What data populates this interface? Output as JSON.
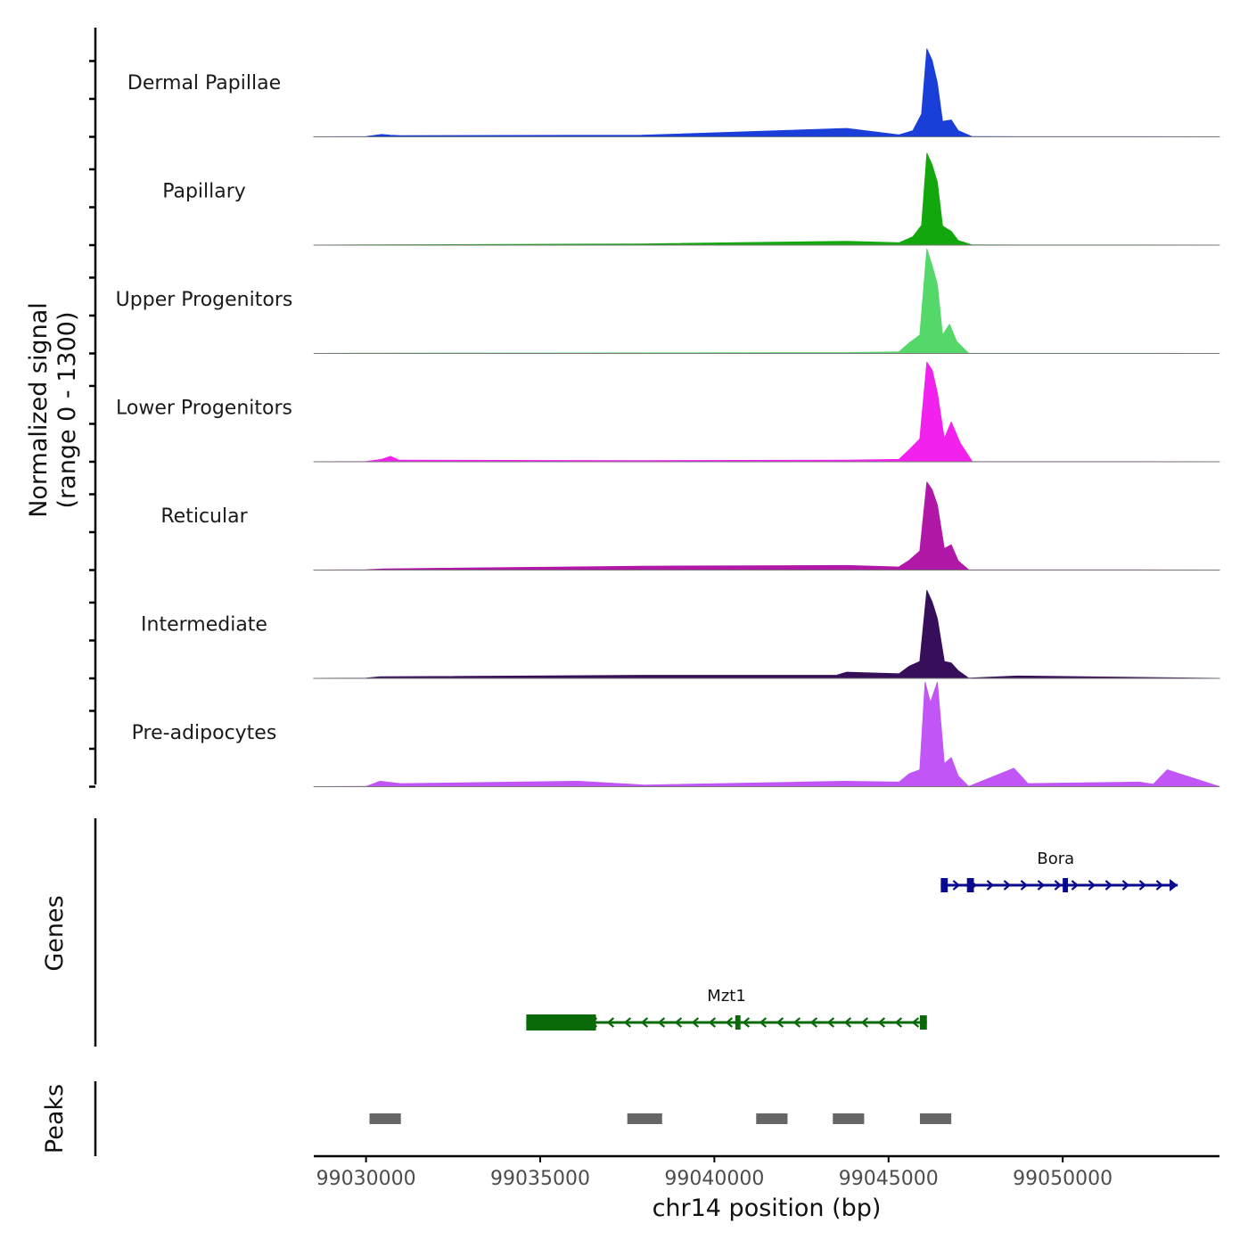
{
  "chart_data": {
    "type": "area",
    "title": "",
    "region": {
      "chrom": "chr14",
      "start": 99028500,
      "end": 99054500
    },
    "coverage": {
      "ylabel_line1": "Normalized signal",
      "ylabel_line2": "(range 0 - 1300)",
      "ylim": [
        0,
        1300
      ],
      "tracks": [
        {
          "name": "Dermal Papillae",
          "color": "#1a3fd9",
          "points": [
            [
              99030000,
              2
            ],
            [
              99030450,
              30
            ],
            [
              99030700,
              20
            ],
            [
              99031000,
              15
            ],
            [
              99037900,
              20
            ],
            [
              99043800,
              110
            ],
            [
              99045300,
              25
            ],
            [
              99045700,
              80
            ],
            [
              99045950,
              300
            ],
            [
              99046100,
              1150
            ],
            [
              99046250,
              1000
            ],
            [
              99046400,
              700
            ],
            [
              99046550,
              200
            ],
            [
              99046800,
              220
            ],
            [
              99047000,
              80
            ],
            [
              99047400,
              2
            ]
          ]
        },
        {
          "name": "Papillary",
          "color": "#12a80d",
          "points": [
            [
              99030000,
              2
            ],
            [
              99037900,
              15
            ],
            [
              99043800,
              50
            ],
            [
              99045300,
              30
            ],
            [
              99045700,
              110
            ],
            [
              99045950,
              260
            ],
            [
              99046100,
              1200
            ],
            [
              99046250,
              1050
            ],
            [
              99046400,
              820
            ],
            [
              99046550,
              250
            ],
            [
              99046800,
              180
            ],
            [
              99047000,
              60
            ],
            [
              99047400,
              2
            ]
          ]
        },
        {
          "name": "Upper Progenitors",
          "color": "#55d86a",
          "points": [
            [
              99030000,
              2
            ],
            [
              99043800,
              10
            ],
            [
              99045300,
              20
            ],
            [
              99045600,
              140
            ],
            [
              99045900,
              240
            ],
            [
              99046100,
              1400
            ],
            [
              99046250,
              1150
            ],
            [
              99046400,
              900
            ],
            [
              99046550,
              240
            ],
            [
              99046750,
              380
            ],
            [
              99046950,
              160
            ],
            [
              99047300,
              2
            ]
          ]
        },
        {
          "name": "Lower Progenitors",
          "color": "#f221ee",
          "points": [
            [
              99030000,
              2
            ],
            [
              99030450,
              30
            ],
            [
              99030700,
              70
            ],
            [
              99030950,
              20
            ],
            [
              99037900,
              15
            ],
            [
              99043800,
              20
            ],
            [
              99045300,
              30
            ],
            [
              99045600,
              160
            ],
            [
              99045900,
              300
            ],
            [
              99046100,
              1300
            ],
            [
              99046250,
              1200
            ],
            [
              99046400,
              900
            ],
            [
              99046600,
              300
            ],
            [
              99046800,
              520
            ],
            [
              99047050,
              250
            ],
            [
              99047400,
              2
            ]
          ]
        },
        {
          "name": "Reticular",
          "color": "#b118a8",
          "points": [
            [
              99030000,
              2
            ],
            [
              99030500,
              15
            ],
            [
              99037900,
              50
            ],
            [
              99043800,
              60
            ],
            [
              99045300,
              40
            ],
            [
              99045600,
              130
            ],
            [
              99045900,
              250
            ],
            [
              99046100,
              1150
            ],
            [
              99046250,
              1050
            ],
            [
              99046400,
              850
            ],
            [
              99046600,
              280
            ],
            [
              99046800,
              330
            ],
            [
              99047000,
              120
            ],
            [
              99047300,
              2
            ]
          ]
        },
        {
          "name": "Intermediate",
          "color": "#360e59",
          "points": [
            [
              99030000,
              2
            ],
            [
              99030400,
              20
            ],
            [
              99037900,
              40
            ],
            [
              99043500,
              40
            ],
            [
              99043800,
              80
            ],
            [
              99045300,
              60
            ],
            [
              99045600,
              160
            ],
            [
              99045900,
              220
            ],
            [
              99046100,
              1150
            ],
            [
              99046250,
              1000
            ],
            [
              99046400,
              780
            ],
            [
              99046600,
              220
            ],
            [
              99046800,
              200
            ],
            [
              99047000,
              100
            ],
            [
              99047300,
              2
            ],
            [
              99048700,
              30
            ]
          ]
        },
        {
          "name": "Pre-adipocytes",
          "color": "#c255f5",
          "points": [
            [
              99030000,
              2
            ],
            [
              99030400,
              70
            ],
            [
              99030600,
              60
            ],
            [
              99031000,
              40
            ],
            [
              99036100,
              70
            ],
            [
              99038000,
              20
            ],
            [
              99042500,
              60
            ],
            [
              99043700,
              70
            ],
            [
              99045300,
              60
            ],
            [
              99045600,
              170
            ],
            [
              99045900,
              220
            ],
            [
              99046050,
              1450
            ],
            [
              99046200,
              1100
            ],
            [
              99046400,
              1450
            ],
            [
              99046600,
              300
            ],
            [
              99046800,
              380
            ],
            [
              99047000,
              140
            ],
            [
              99047300,
              2
            ],
            [
              99048600,
              240
            ],
            [
              99049000,
              40
            ],
            [
              99052200,
              60
            ],
            [
              99052600,
              30
            ],
            [
              99053000,
              220
            ]
          ]
        }
      ]
    },
    "genes": {
      "label": "Genes",
      "items": [
        {
          "name": "Bora",
          "strand": "+",
          "color": "#0a0a90",
          "start": 99046500,
          "end": 99053300,
          "exons": [
            [
              99046500,
              99046700
            ],
            [
              99047250,
              99047450
            ],
            [
              99050000,
              99050150
            ]
          ]
        },
        {
          "name": "Mzt1",
          "strand": "-",
          "color": "#0a6a0a",
          "start": 99034600,
          "end": 99046100,
          "exons": [
            [
              99034600,
              99036600
            ],
            [
              99040600,
              99040750
            ],
            [
              99045900,
              99046100
            ]
          ]
        }
      ]
    },
    "peaks": {
      "label": "Peaks",
      "color": "#666666",
      "items": [
        [
          99030100,
          99031000
        ],
        [
          99037500,
          99038500
        ],
        [
          99041200,
          99042100
        ],
        [
          99043400,
          99044300
        ],
        [
          99045900,
          99046800
        ]
      ]
    },
    "x_axis": {
      "label": "chr14 position (bp)",
      "ticks": [
        99030000,
        99035000,
        99040000,
        99045000,
        99050000
      ],
      "tick_labels": [
        "99030000",
        "99035000",
        "99040000",
        "99045000",
        "99050000"
      ]
    }
  }
}
